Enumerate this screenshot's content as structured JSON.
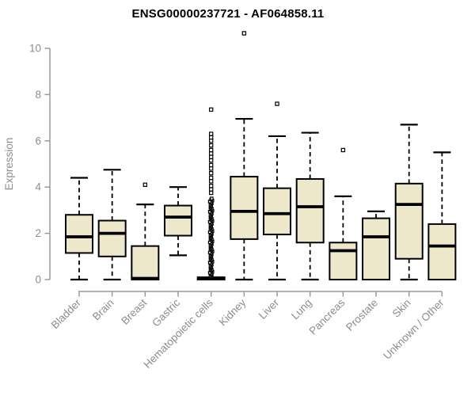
{
  "chart_data": {
    "type": "boxplot",
    "title": "ENSG00000237721 - AF064858.11",
    "xlabel": "",
    "ylabel": "Expression",
    "ylim": [
      0,
      10
    ],
    "y_ticks": [
      0,
      2,
      4,
      6,
      8,
      10
    ],
    "grid": false,
    "legend": "none",
    "colors": {
      "box_fill": "#EDE8CC",
      "box_stroke": "#000000",
      "median": "#000000",
      "whisker": "#000000",
      "axis_line": "#9A9A9A",
      "axis_text": "#8A8D8F",
      "title_text": "#000000",
      "outlier_fill": "#FFFFFF",
      "outlier_stroke": "#000000",
      "background": "#FFFFFF"
    },
    "categories": [
      "Bladder",
      "Brain",
      "Breast",
      "Gastric",
      "Hematopoietic cells",
      "Kidney",
      "Liver",
      "Lung",
      "Pancreas",
      "Prostate",
      "Skin",
      "Unknown / Other"
    ],
    "series": [
      {
        "category": "Bladder",
        "whisker_low": 0,
        "q1": 1.15,
        "median": 1.85,
        "q3": 2.8,
        "whisker_high": 4.4,
        "outliers": []
      },
      {
        "category": "Brain",
        "whisker_low": 0,
        "q1": 1.0,
        "median": 2.0,
        "q3": 2.55,
        "whisker_high": 4.75,
        "outliers": []
      },
      {
        "category": "Breast",
        "whisker_low": 0,
        "q1": 0,
        "median": 0.05,
        "q3": 1.45,
        "whisker_high": 3.25,
        "outliers": [
          4.1
        ]
      },
      {
        "category": "Gastric",
        "whisker_low": 1.05,
        "q1": 1.9,
        "median": 2.7,
        "q3": 3.2,
        "whisker_high": 4.0,
        "outliers": []
      },
      {
        "category": "Hematopoietic cells",
        "whisker_low": 0,
        "q1": 0,
        "median": 0.03,
        "q3": 0.1,
        "whisker_high": 0.12,
        "outliers": [
          7.35,
          6.3,
          6.15,
          6.0,
          5.8,
          5.6,
          5.45,
          5.3,
          5.15,
          4.95,
          4.8,
          4.6,
          4.4,
          4.25,
          4.05,
          3.9,
          3.75
        ],
        "outlier_column": {
          "min": 0.12,
          "max": 3.55,
          "step": 0.044
        }
      },
      {
        "category": "Kidney",
        "whisker_low": 0,
        "q1": 1.75,
        "median": 2.95,
        "q3": 4.45,
        "whisker_high": 6.95,
        "outliers": [
          10.65
        ]
      },
      {
        "category": "Liver",
        "whisker_low": 0,
        "q1": 1.95,
        "median": 2.85,
        "q3": 3.95,
        "whisker_high": 6.2,
        "outliers": [
          7.6
        ]
      },
      {
        "category": "Lung",
        "whisker_low": 0,
        "q1": 1.6,
        "median": 3.15,
        "q3": 4.35,
        "whisker_high": 6.35,
        "outliers": []
      },
      {
        "category": "Pancreas",
        "whisker_low": 0,
        "q1": 0,
        "median": 1.25,
        "q3": 1.6,
        "whisker_high": 3.6,
        "outliers": [
          5.6
        ]
      },
      {
        "category": "Prostate",
        "whisker_low": 0,
        "q1": 0,
        "median": 1.85,
        "q3": 2.65,
        "whisker_high": 2.95,
        "outliers": []
      },
      {
        "category": "Skin",
        "whisker_low": 0,
        "q1": 0.9,
        "median": 3.25,
        "q3": 4.15,
        "whisker_high": 6.7,
        "outliers": []
      },
      {
        "category": "Unknown / Other",
        "whisker_low": 0,
        "q1": 0,
        "median": 1.45,
        "q3": 2.4,
        "whisker_high": 5.5,
        "outliers": []
      }
    ]
  }
}
